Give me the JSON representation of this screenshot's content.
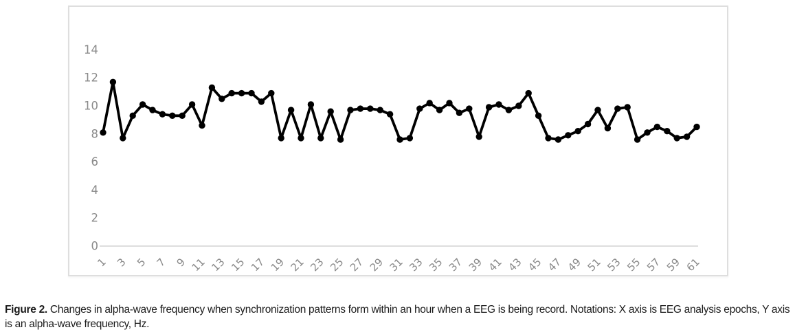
{
  "figure": {
    "caption_label": "Figure 2.",
    "caption_text": " Changes in alpha-wave frequency when synchronization patterns form within an hour when a EEG is being record. Notations: X axis is EEG analysis epochs, Y axis is an alpha-wave frequency, Hz."
  },
  "chart_data": {
    "type": "line",
    "title": "",
    "xlabel": "EEG analysis epochs",
    "ylabel": "alpha-wave frequency, Hz",
    "x": [
      1,
      2,
      3,
      4,
      5,
      6,
      7,
      8,
      9,
      10,
      11,
      12,
      13,
      14,
      15,
      16,
      17,
      18,
      19,
      20,
      21,
      22,
      23,
      24,
      25,
      26,
      27,
      28,
      29,
      30,
      31,
      32,
      33,
      34,
      35,
      36,
      37,
      38,
      39,
      40,
      41,
      42,
      43,
      44,
      45,
      46,
      47,
      48,
      49,
      50,
      51,
      52,
      53,
      54,
      55,
      56,
      57,
      58,
      59,
      60,
      61
    ],
    "values": [
      8.1,
      11.7,
      7.7,
      9.3,
      10.1,
      9.7,
      9.4,
      9.3,
      9.3,
      10.1,
      8.6,
      11.3,
      10.5,
      10.9,
      10.9,
      10.9,
      10.3,
      10.9,
      7.7,
      9.7,
      7.7,
      10.1,
      7.7,
      9.6,
      7.6,
      9.7,
      9.8,
      9.8,
      9.7,
      9.4,
      7.6,
      7.7,
      9.8,
      10.2,
      9.7,
      10.2,
      9.5,
      9.8,
      7.8,
      9.9,
      10.1,
      9.7,
      10.0,
      10.9,
      9.3,
      7.7,
      7.6,
      7.9,
      8.2,
      8.7,
      9.7,
      8.4,
      9.8,
      9.9,
      7.6,
      8.1,
      8.5,
      8.2,
      7.7,
      7.8,
      8.5
    ],
    "x_tick_labels": [
      "1",
      "3",
      "5",
      "7",
      "9",
      "11",
      "13",
      "15",
      "17",
      "19",
      "21",
      "23",
      "25",
      "27",
      "29",
      "31",
      "33",
      "35",
      "37",
      "39",
      "41",
      "43",
      "45",
      "47",
      "49",
      "51",
      "53",
      "55",
      "57",
      "59",
      "61"
    ],
    "y_ticks": [
      0,
      2,
      4,
      6,
      8,
      10,
      12,
      14
    ],
    "ylim": [
      0,
      14
    ],
    "grid": false,
    "legend": false,
    "marker": "circle",
    "line_color": "#000000"
  },
  "colors": {
    "background": "#ffffff",
    "panel_border": "#dedede",
    "axis_line": "#d2d2d2",
    "tick_label": "#8a8a8a",
    "series": "#000000",
    "caption_text": "#1a1a1a"
  }
}
